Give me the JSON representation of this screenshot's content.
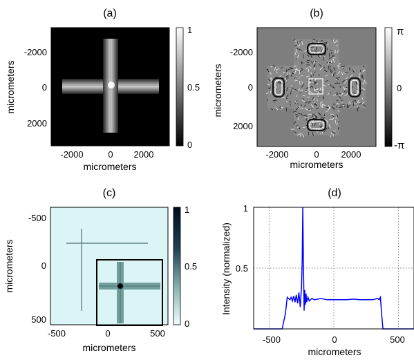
{
  "panels": {
    "a": {
      "label": "(a)",
      "xlabel": "micrometers",
      "ylabel": "micrometers",
      "xticks": [
        "-2000",
        "0",
        "2000"
      ],
      "yticks": [
        "-2000",
        "0",
        "2000"
      ],
      "colorbar_ticks": [
        "1",
        "0.5",
        "0"
      ]
    },
    "b": {
      "label": "(b)",
      "xlabel": "micrometers",
      "ylabel": "micrometers",
      "xticks": [
        "-2000",
        "0",
        "2000"
      ],
      "yticks": [
        "-2000",
        "0",
        "2000"
      ],
      "colorbar_ticks": [
        "π",
        "0",
        "-π"
      ]
    },
    "c": {
      "label": "(c)",
      "xlabel": "micrometers",
      "ylabel": "micrometers",
      "xticks": [
        "-500",
        "0",
        "500"
      ],
      "yticks": [
        "-500",
        "0",
        "500"
      ],
      "colorbar_ticks": [
        "1",
        "0.5",
        "0"
      ]
    },
    "d": {
      "label": "(d)",
      "xlabel": "micrometers",
      "ylabel": "Intensity (normalized)",
      "xticks": [
        "-500",
        "0",
        "500"
      ],
      "yticks": [
        "1",
        "0.5"
      ]
    }
  },
  "chart_data": [
    {
      "type": "heatmap",
      "panel": "a",
      "xlim": [
        -3300,
        3300
      ],
      "ylim": [
        -3300,
        3300
      ],
      "colormap": "gray",
      "clim": [
        0,
        1
      ],
      "description_values": {
        "cross_arm_halfwidth_um": 350,
        "cross_extent_um": 2800
      }
    },
    {
      "type": "heatmap",
      "panel": "b",
      "xlim": [
        -3300,
        3300
      ],
      "ylim": [
        -3300,
        3300
      ],
      "colormap": "gray",
      "clim": [
        "-π",
        "π"
      ]
    },
    {
      "type": "heatmap",
      "panel": "c",
      "xlim": [
        -560,
        560
      ],
      "ylim": [
        -560,
        560
      ],
      "colormap": "bone_r",
      "clim": [
        0,
        1
      ]
    },
    {
      "type": "line",
      "panel": "d",
      "xlim": [
        -620,
        620
      ],
      "ylim": [
        0,
        1
      ],
      "grid": true,
      "series": [
        {
          "color": "#0000ff",
          "x": [
            -620,
            -400,
            -375,
            -360,
            -350,
            -340,
            -330,
            -320,
            -310,
            -300,
            -290,
            -280,
            -270,
            -260,
            -250,
            -245,
            -240,
            -235,
            -230,
            -225,
            -220,
            -215,
            -210,
            -200,
            -190,
            -170,
            -150,
            -100,
            -50,
            0,
            50,
            100,
            150,
            200,
            250,
            300,
            340,
            350,
            355,
            360,
            370,
            380,
            620
          ],
          "y": [
            0,
            0,
            0.12,
            0.26,
            0.25,
            0.24,
            0.26,
            0.23,
            0.27,
            0.22,
            0.28,
            0.21,
            0.3,
            0.18,
            0.34,
            0.55,
            1.0,
            0.55,
            0.15,
            0.32,
            0.2,
            0.29,
            0.22,
            0.26,
            0.23,
            0.25,
            0.24,
            0.25,
            0.24,
            0.24,
            0.24,
            0.24,
            0.245,
            0.24,
            0.24,
            0.24,
            0.25,
            0.24,
            0.25,
            0.26,
            0.12,
            0,
            0
          ]
        }
      ]
    }
  ]
}
